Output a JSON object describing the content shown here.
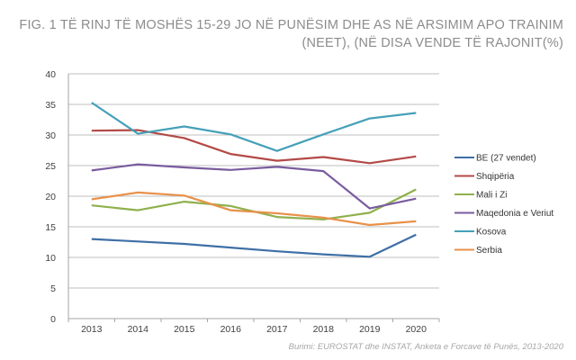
{
  "title_line1": "FIG. 1  TË RINJ TË MOSHËS 15-29 JO NË PUNËSIM DHE AS NË ARSIMIM APO TRAINIM",
  "title_line2": "(NEET), (NË DISA VENDE TË RAJONIT(%)",
  "source": "Burimi: EUROSTAT dhe INSTAT, Anketa e Forcave të Punës, 2013-2020",
  "chart_data": {
    "type": "line",
    "title": "FIG. 1  TË RINJ TË MOSHËS 15-29 JO NË PUNËSIM DHE AS NË ARSIMIM APO TRAINIM (NEET), (NË DISA VENDE TË RAJONIT(%)",
    "xlabel": "",
    "ylabel": "",
    "categories": [
      "2013",
      "2014",
      "2015",
      "2016",
      "2017",
      "2018",
      "2019",
      "2020"
    ],
    "ylim": [
      0,
      40
    ],
    "yticks": [
      "0",
      "5",
      "10",
      "15",
      "20",
      "25",
      "30",
      "35",
      "40"
    ],
    "grid": true,
    "legend_position": "right",
    "series": [
      {
        "name": "BE (27 vendet)",
        "color": "#3f6fa6",
        "values": [
          13.0,
          12.6,
          12.2,
          11.6,
          11.0,
          10.5,
          10.1,
          13.7
        ]
      },
      {
        "name": "Shqipëria",
        "color": "#b34a47",
        "values": [
          30.7,
          30.8,
          29.5,
          26.9,
          25.8,
          26.4,
          25.4,
          26.5
        ]
      },
      {
        "name": "Mali i Zi",
        "color": "#8fb04c",
        "values": [
          18.5,
          17.7,
          19.1,
          18.4,
          16.6,
          16.2,
          17.3,
          21.1
        ]
      },
      {
        "name": "Maqedonia e Veriut",
        "color": "#7a5c9e",
        "values": [
          24.2,
          25.2,
          24.7,
          24.3,
          24.8,
          24.1,
          18.0,
          19.6
        ]
      },
      {
        "name": "Kosova",
        "color": "#45a0b8",
        "values": [
          35.3,
          30.2,
          31.4,
          30.1,
          27.4,
          30.1,
          32.7,
          33.6
        ]
      },
      {
        "name": "Serbia",
        "color": "#e8914a",
        "values": [
          19.5,
          20.6,
          20.1,
          17.7,
          17.2,
          16.5,
          15.3,
          15.9
        ]
      }
    ]
  }
}
